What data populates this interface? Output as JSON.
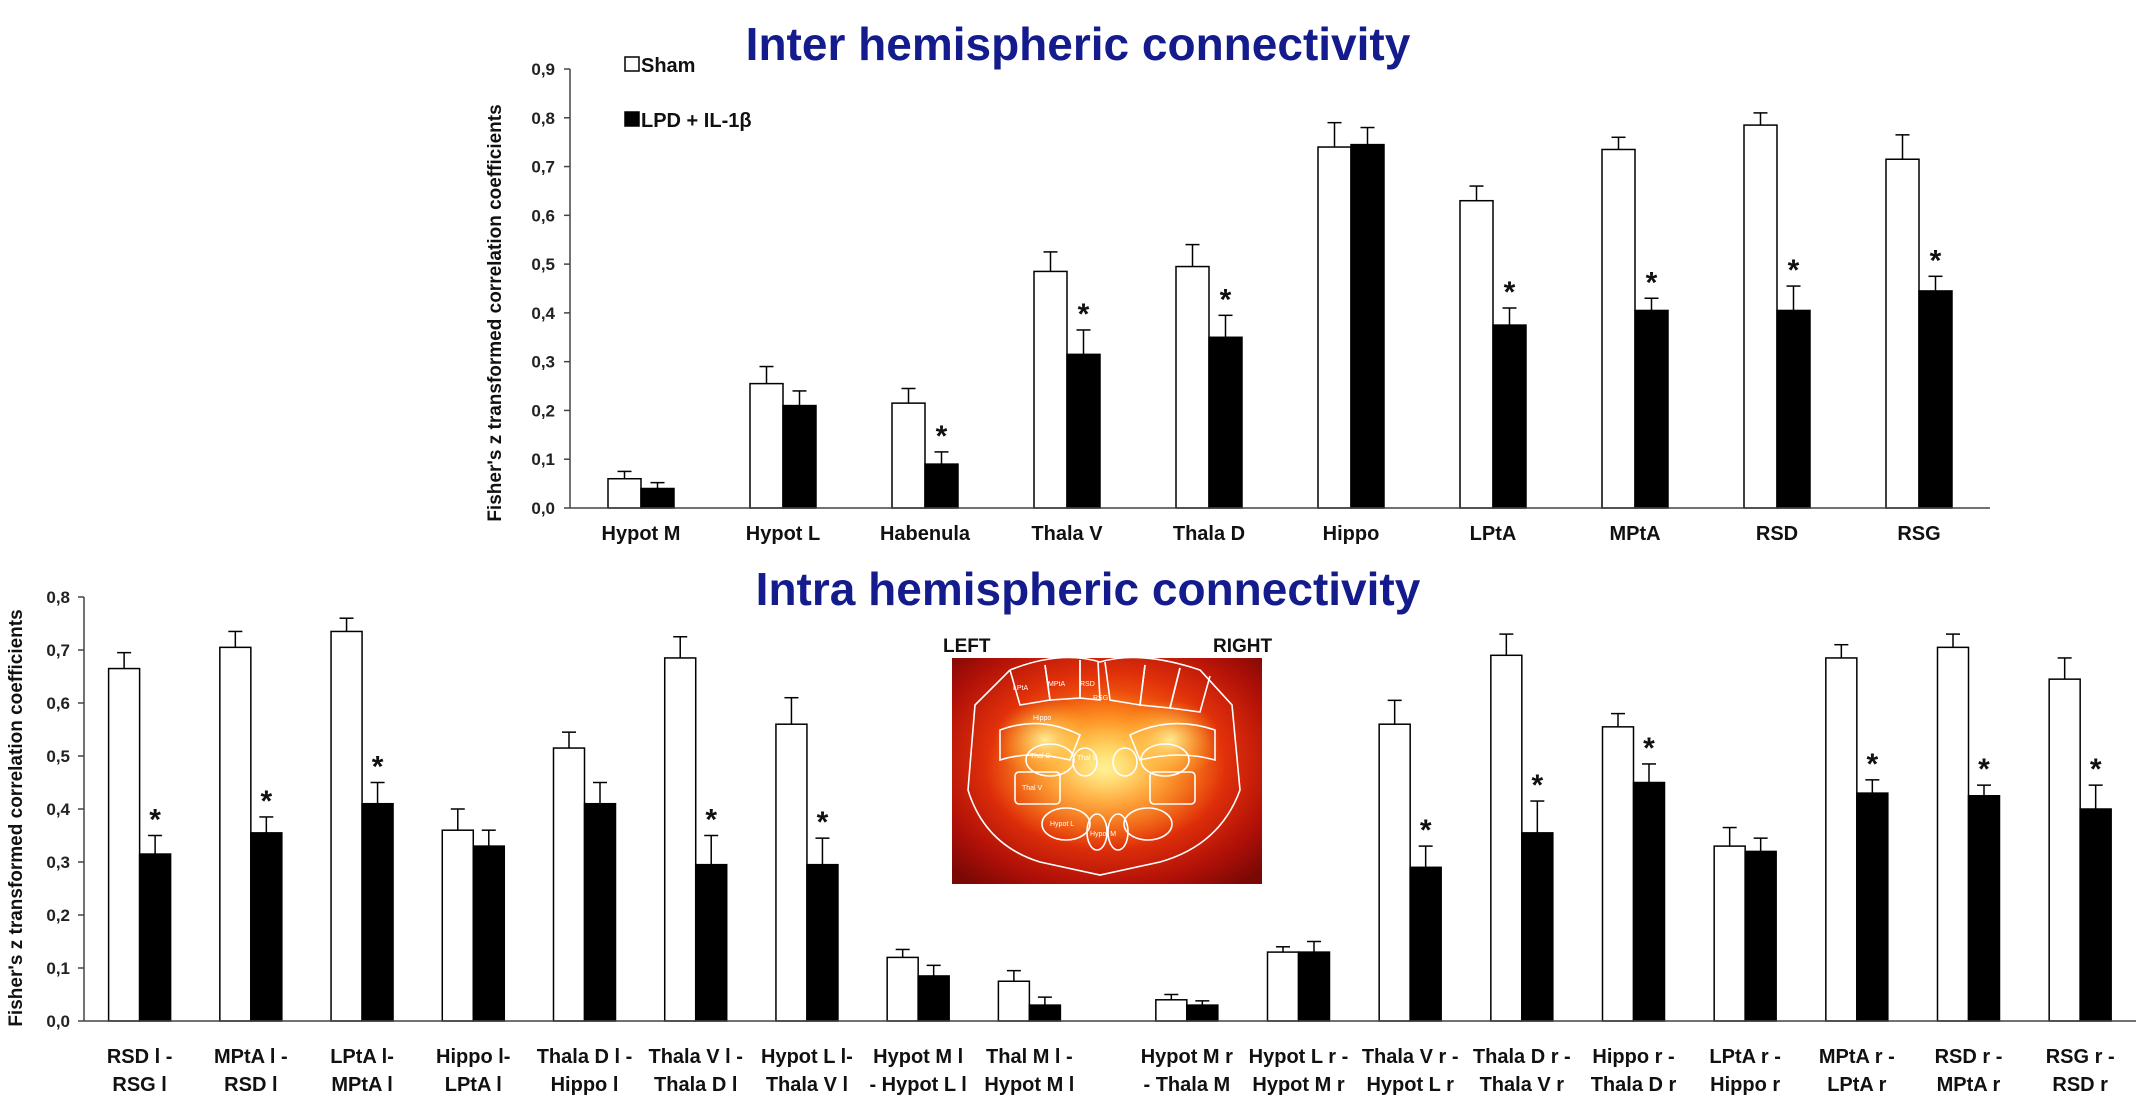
{
  "colors": {
    "sham": "#ffffff",
    "lpd": "#000000",
    "title": "#141b8c"
  },
  "legend": {
    "sham": "Sham",
    "lpd": "LPD + IL-1β"
  },
  "brain": {
    "left_label": "LEFT",
    "right_label": "RIGHT",
    "rois": [
      "LPtA",
      "MPtA",
      "RSD",
      "RSG",
      "Hippo",
      "Thal D",
      "Thal V",
      "Thal V",
      "Hypot L",
      "Hypot M"
    ]
  },
  "chart_data": [
    {
      "type": "bar",
      "title": "Inter hemispheric connectivity",
      "ylabel": "Fisher's z transformed correlation coefficients",
      "xlabel": "",
      "ylim": [
        0,
        0.9
      ],
      "ytick_labels": [
        "0,0",
        "0,1",
        "0,2",
        "0,3",
        "0,4",
        "0,5",
        "0,6",
        "0,7",
        "0,8",
        "0,9"
      ],
      "categories": [
        [
          "Hypot M"
        ],
        [
          "Hypot L"
        ],
        [
          "Habenula"
        ],
        [
          "Thala V"
        ],
        [
          "Thala D"
        ],
        [
          "Hippo"
        ],
        [
          "LPtA"
        ],
        [
          "MPtA"
        ],
        [
          "RSD"
        ],
        [
          "RSG"
        ]
      ],
      "series": [
        {
          "name": "Sham",
          "values": [
            0.06,
            0.255,
            0.215,
            0.485,
            0.495,
            0.74,
            0.63,
            0.735,
            0.785,
            0.715
          ],
          "errors": [
            0.015,
            0.035,
            0.03,
            0.04,
            0.045,
            0.05,
            0.03,
            0.025,
            0.025,
            0.05
          ]
        },
        {
          "name": "LPD + IL-1β",
          "values": [
            0.04,
            0.21,
            0.09,
            0.315,
            0.35,
            0.745,
            0.375,
            0.405,
            0.405,
            0.445
          ],
          "errors": [
            0.012,
            0.03,
            0.025,
            0.05,
            0.045,
            0.035,
            0.035,
            0.025,
            0.05,
            0.03
          ]
        }
      ],
      "significant": [
        false,
        false,
        true,
        true,
        true,
        false,
        true,
        true,
        true,
        true
      ],
      "significance_marker": "*"
    },
    {
      "type": "bar",
      "title": "Intra hemispheric connectivity",
      "ylabel": "Fisher's z transformed correlation coefficients",
      "xlabel": "",
      "ylim": [
        0,
        0.8
      ],
      "ytick_labels": [
        "0,0",
        "0,1",
        "0,2",
        "0,3",
        "0,4",
        "0,5",
        "0,6",
        "0,7",
        "0,8"
      ],
      "categories": [
        [
          "RSD l -",
          "RSG l"
        ],
        [
          "MPtA l -",
          "RSD l"
        ],
        [
          "LPtA l-",
          "MPtA l"
        ],
        [
          "Hippo l-",
          "LPtA l"
        ],
        [
          "Thala D l -",
          "Hippo l"
        ],
        [
          "Thala V l -",
          "Thala D l"
        ],
        [
          "Hypot L l-",
          "Thala V l"
        ],
        [
          "Hypot M l",
          "- Hypot L l"
        ],
        [
          "Thal M l -",
          "Hypot M l"
        ],
        [
          "Hypot M r",
          "- Thala M"
        ],
        [
          "Hypot L r -",
          "Hypot M r"
        ],
        [
          "Thala V r -",
          "Hypot L r"
        ],
        [
          "Thala D r -",
          "Thala V r"
        ],
        [
          "Hippo r -",
          "Thala D r"
        ],
        [
          "LPtA r -",
          "Hippo r"
        ],
        [
          "MPtA r -",
          "LPtA r"
        ],
        [
          "RSD r -",
          "MPtA r"
        ],
        [
          "RSG r -",
          "RSD r"
        ]
      ],
      "series": [
        {
          "name": "Sham",
          "values": [
            0.665,
            0.705,
            0.735,
            0.36,
            0.515,
            0.685,
            0.56,
            0.12,
            0.075,
            0.04,
            0.13,
            0.56,
            0.69,
            0.555,
            0.33,
            0.685,
            0.705,
            0.645
          ],
          "errors": [
            0.03,
            0.03,
            0.025,
            0.04,
            0.03,
            0.04,
            0.05,
            0.015,
            0.02,
            0.01,
            0.01,
            0.045,
            0.04,
            0.025,
            0.035,
            0.025,
            0.025,
            0.04
          ]
        },
        {
          "name": "LPD + IL-1β",
          "values": [
            0.315,
            0.355,
            0.41,
            0.33,
            0.41,
            0.295,
            0.295,
            0.085,
            0.03,
            0.03,
            0.13,
            0.29,
            0.355,
            0.45,
            0.32,
            0.43,
            0.425,
            0.4
          ],
          "errors": [
            0.035,
            0.03,
            0.04,
            0.03,
            0.04,
            0.055,
            0.05,
            0.02,
            0.015,
            0.008,
            0.02,
            0.04,
            0.06,
            0.035,
            0.025,
            0.025,
            0.02,
            0.045
          ]
        }
      ],
      "significant": [
        true,
        true,
        true,
        false,
        false,
        true,
        true,
        false,
        false,
        false,
        false,
        true,
        true,
        true,
        false,
        true,
        true,
        true
      ],
      "significance_marker": "*"
    }
  ]
}
